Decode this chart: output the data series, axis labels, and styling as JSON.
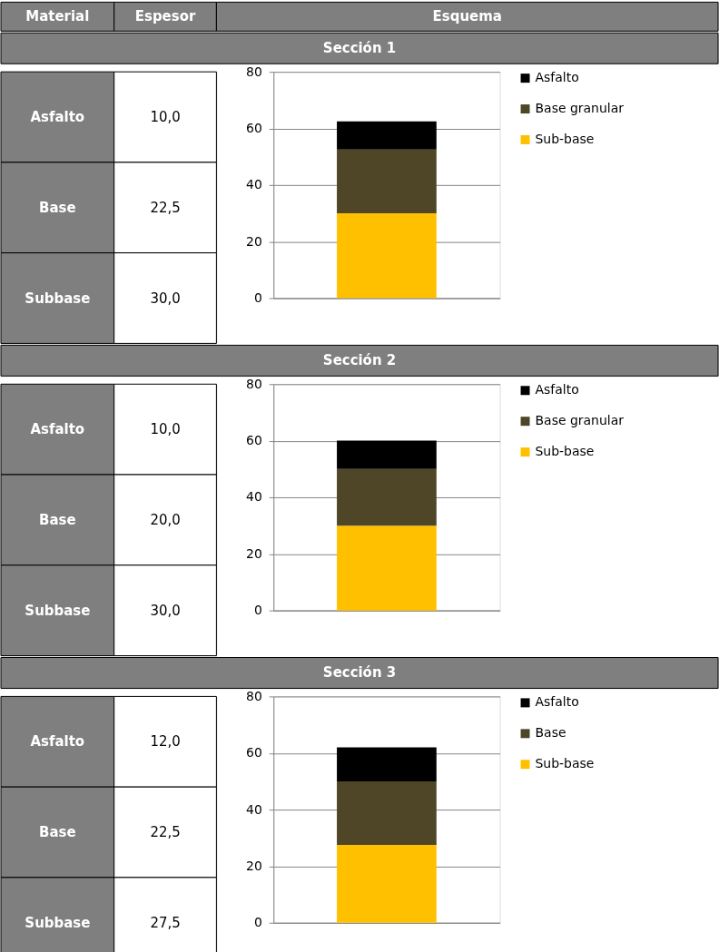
{
  "chart_data": [
    {
      "type": "other",
      "annotations": [
        "Material",
        "Espesor",
        "Esquema"
      ]
    },
    {
      "type": "bar",
      "title": "Sección 1",
      "stacked": true,
      "categories": [
        null
      ],
      "ylim": [
        0,
        80
      ],
      "yticks": [
        0,
        20,
        40,
        60,
        80
      ],
      "grid": "y",
      "legend": "right",
      "annotations": [
        "Asfalto",
        "10,0",
        "Base",
        "22,5",
        "Subbase",
        "30,0"
      ],
      "series": [
        {
          "name": "Sub-base",
          "color": "#ffc000",
          "values": [
            30
          ]
        },
        {
          "name": "Base granular",
          "color": "#4f4628",
          "values": [
            22.5
          ]
        },
        {
          "name": "Asfalto",
          "color": "#000000",
          "values": [
            10
          ]
        }
      ]
    },
    {
      "type": "bar",
      "title": "Sección 2",
      "stacked": true,
      "categories": [
        null
      ],
      "ylim": [
        0,
        80
      ],
      "yticks": [
        0,
        20,
        40,
        60,
        80
      ],
      "grid": "y",
      "legend": "right",
      "annotations": [
        "Asfalto",
        "10,0",
        "Base",
        "20,0",
        "Subbase",
        "30,0"
      ],
      "series": [
        {
          "name": "Sub-base",
          "color": "#ffc000",
          "values": [
            30
          ]
        },
        {
          "name": "Base granular",
          "color": "#4f4628",
          "values": [
            20
          ]
        },
        {
          "name": "Asfalto",
          "color": "#000000",
          "values": [
            10
          ]
        }
      ]
    },
    {
      "type": "bar",
      "title": "Sección 3",
      "stacked": true,
      "categories": [
        null
      ],
      "ylim": [
        0,
        80
      ],
      "yticks": [
        0,
        20,
        40,
        60,
        80
      ],
      "grid": "y",
      "legend": "right",
      "annotations": [
        "Asfalto",
        "12,0",
        "Base",
        "22,5",
        "Subbase",
        "27,5"
      ],
      "series": [
        {
          "name": "Sub-base",
          "color": "#ffc000",
          "values": [
            27.5
          ]
        },
        {
          "name": "Base",
          "color": "#4f4628",
          "values": [
            22.5
          ]
        },
        {
          "name": "Asfalto",
          "color": "#000000",
          "values": [
            12
          ]
        }
      ]
    }
  ]
}
